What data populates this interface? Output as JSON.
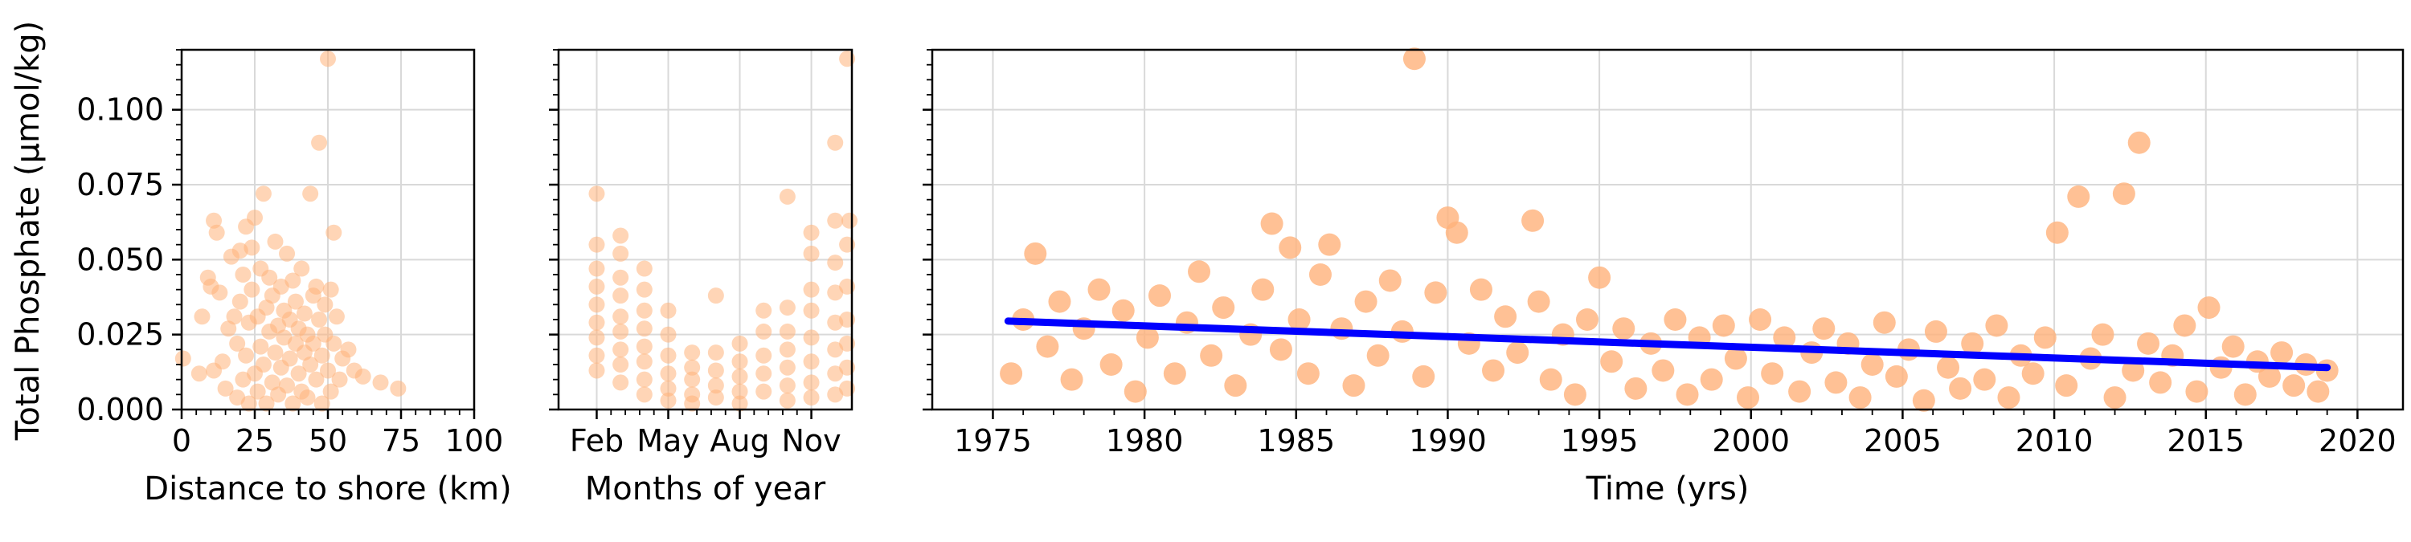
{
  "figure": {
    "ylabel": "Total Phosphate (µmol/kg)",
    "marker_color": "#ffb27a",
    "trend_color": "#0000ff"
  },
  "chart_data": [
    {
      "type": "scatter",
      "xlabel": "Distance to shore (km)",
      "ylabel": "Total Phosphate (µmol/kg)",
      "xlim": [
        0,
        100
      ],
      "ylim": [
        0,
        0.12
      ],
      "xticks": [
        0,
        25,
        50,
        75,
        100
      ],
      "xtick_labels": [
        "0",
        "25",
        "50",
        "75",
        "100"
      ],
      "yticks": [
        0,
        0.025,
        0.05,
        0.075,
        0.1
      ],
      "ytick_labels": [
        "0.000",
        "0.025",
        "0.050",
        "0.075",
        "0.100"
      ],
      "grid": true,
      "points": [
        [
          0.5,
          0.017
        ],
        [
          6,
          0.012
        ],
        [
          7,
          0.031
        ],
        [
          9,
          0.044
        ],
        [
          10,
          0.041
        ],
        [
          11,
          0.063
        ],
        [
          11,
          0.013
        ],
        [
          12,
          0.059
        ],
        [
          13,
          0.039
        ],
        [
          14,
          0.016
        ],
        [
          15,
          0.007
        ],
        [
          16,
          0.027
        ],
        [
          17,
          0.051
        ],
        [
          18,
          0.031
        ],
        [
          19,
          0.004
        ],
        [
          19,
          0.022
        ],
        [
          20,
          0.036
        ],
        [
          20,
          0.053
        ],
        [
          21,
          0.01
        ],
        [
          21,
          0.045
        ],
        [
          22,
          0.061
        ],
        [
          22,
          0.018
        ],
        [
          23,
          0.029
        ],
        [
          23,
          0.002
        ],
        [
          24,
          0.04
        ],
        [
          24,
          0.054
        ],
        [
          25,
          0.012
        ],
        [
          25,
          0.064
        ],
        [
          26,
          0.031
        ],
        [
          26,
          0.006
        ],
        [
          27,
          0.021
        ],
        [
          27,
          0.047
        ],
        [
          28,
          0.072
        ],
        [
          28,
          0.015
        ],
        [
          29,
          0.034
        ],
        [
          29,
          0.002
        ],
        [
          30,
          0.026
        ],
        [
          30,
          0.044
        ],
        [
          31,
          0.009
        ],
        [
          31,
          0.038
        ],
        [
          32,
          0.019
        ],
        [
          32,
          0.056
        ],
        [
          33,
          0.028
        ],
        [
          33,
          0.005
        ],
        [
          34,
          0.041
        ],
        [
          34,
          0.014
        ],
        [
          35,
          0.024
        ],
        [
          35,
          0.033
        ],
        [
          36,
          0.052
        ],
        [
          36,
          0.008
        ],
        [
          37,
          0.03
        ],
        [
          37,
          0.017
        ],
        [
          38,
          0.043
        ],
        [
          38,
          0.002
        ],
        [
          39,
          0.022
        ],
        [
          39,
          0.036
        ],
        [
          40,
          0.012
        ],
        [
          40,
          0.027
        ],
        [
          41,
          0.047
        ],
        [
          41,
          0.006
        ],
        [
          42,
          0.032
        ],
        [
          42,
          0.019
        ],
        [
          43,
          0.025
        ],
        [
          43,
          0.004
        ],
        [
          44,
          0.072
        ],
        [
          44,
          0.015
        ],
        [
          45,
          0.038
        ],
        [
          45,
          0.022
        ],
        [
          46,
          0.041
        ],
        [
          46,
          0.01
        ],
        [
          47,
          0.089
        ],
        [
          47,
          0.03
        ],
        [
          48,
          0.018
        ],
        [
          48,
          0.002
        ],
        [
          49,
          0.035
        ],
        [
          49,
          0.025
        ],
        [
          50,
          0.117
        ],
        [
          50,
          0.013
        ],
        [
          51,
          0.04
        ],
        [
          51,
          0.006
        ],
        [
          52,
          0.059
        ],
        [
          52,
          0.022
        ],
        [
          53,
          0.031
        ],
        [
          54,
          0.01
        ],
        [
          55,
          0.017
        ],
        [
          57,
          0.02
        ],
        [
          59,
          0.013
        ],
        [
          62,
          0.011
        ],
        [
          68,
          0.009
        ],
        [
          74,
          0.007
        ]
      ]
    },
    {
      "type": "scatter",
      "xlabel": "Months of year",
      "ylabel": "",
      "xlim": [
        0.4,
        12.7
      ],
      "ylim": [
        0,
        0.12
      ],
      "xticks": [
        2,
        5,
        8,
        11
      ],
      "xtick_labels": [
        "Feb",
        "May",
        "Aug",
        "Nov"
      ],
      "yticks": [
        0,
        0.025,
        0.05,
        0.075,
        0.1
      ],
      "ytick_labels": [],
      "grid": true,
      "points": [
        [
          2,
          0.072
        ],
        [
          2,
          0.055
        ],
        [
          2,
          0.047
        ],
        [
          2,
          0.041
        ],
        [
          2,
          0.035
        ],
        [
          2,
          0.029
        ],
        [
          2,
          0.024
        ],
        [
          2,
          0.018
        ],
        [
          2,
          0.013
        ],
        [
          3,
          0.058
        ],
        [
          3,
          0.052
        ],
        [
          3,
          0.044
        ],
        [
          3,
          0.038
        ],
        [
          3,
          0.031
        ],
        [
          3,
          0.026
        ],
        [
          3,
          0.02
        ],
        [
          3,
          0.015
        ],
        [
          3,
          0.009
        ],
        [
          4,
          0.047
        ],
        [
          4,
          0.04
        ],
        [
          4,
          0.033
        ],
        [
          4,
          0.027
        ],
        [
          4,
          0.021
        ],
        [
          4,
          0.016
        ],
        [
          4,
          0.01
        ],
        [
          4,
          0.005
        ],
        [
          5,
          0.033
        ],
        [
          5,
          0.025
        ],
        [
          5,
          0.018
        ],
        [
          5,
          0.012
        ],
        [
          5,
          0.007
        ],
        [
          5,
          0.003
        ],
        [
          6,
          0.019
        ],
        [
          6,
          0.014
        ],
        [
          6,
          0.01
        ],
        [
          6,
          0.005
        ],
        [
          6,
          0.002
        ],
        [
          7,
          0.038
        ],
        [
          7,
          0.019
        ],
        [
          7,
          0.013
        ],
        [
          7,
          0.008
        ],
        [
          7,
          0.004
        ],
        [
          8,
          0.022
        ],
        [
          8,
          0.016
        ],
        [
          8,
          0.011
        ],
        [
          8,
          0.006
        ],
        [
          8,
          0.002
        ],
        [
          9,
          0.033
        ],
        [
          9,
          0.026
        ],
        [
          9,
          0.018
        ],
        [
          9,
          0.012
        ],
        [
          9,
          0.006
        ],
        [
          10,
          0.071
        ],
        [
          10,
          0.034
        ],
        [
          10,
          0.026
        ],
        [
          10,
          0.02
        ],
        [
          10,
          0.014
        ],
        [
          10,
          0.008
        ],
        [
          10,
          0.003
        ],
        [
          11,
          0.059
        ],
        [
          11,
          0.052
        ],
        [
          11,
          0.04
        ],
        [
          11,
          0.033
        ],
        [
          11,
          0.024
        ],
        [
          11,
          0.016
        ],
        [
          11,
          0.009
        ],
        [
          11,
          0.004
        ],
        [
          12,
          0.089
        ],
        [
          12,
          0.063
        ],
        [
          12,
          0.049
        ],
        [
          12,
          0.039
        ],
        [
          12,
          0.029
        ],
        [
          12,
          0.02
        ],
        [
          12,
          0.012
        ],
        [
          12,
          0.005
        ],
        [
          12.5,
          0.117
        ],
        [
          12.5,
          0.055
        ],
        [
          12.5,
          0.041
        ],
        [
          12.5,
          0.03
        ],
        [
          12.5,
          0.022
        ],
        [
          12.5,
          0.014
        ],
        [
          12.5,
          0.007
        ],
        [
          12.6,
          0.063
        ]
      ]
    },
    {
      "type": "scatter",
      "xlabel": "Time (yrs)",
      "ylabel": "",
      "xlim": [
        1973,
        2021.5
      ],
      "ylim": [
        0,
        0.12
      ],
      "xticks": [
        1975,
        1980,
        1985,
        1990,
        1995,
        2000,
        2005,
        2010,
        2015,
        2020
      ],
      "xtick_labels": [
        "1975",
        "1980",
        "1985",
        "1990",
        "1995",
        "2000",
        "2005",
        "2010",
        "2015",
        "2020"
      ],
      "yticks": [
        0,
        0.025,
        0.05,
        0.075,
        0.1
      ],
      "ytick_labels": [],
      "grid": true,
      "trend": {
        "x": [
          1975.5,
          2019
        ],
        "y": [
          0.0295,
          0.014
        ]
      },
      "points": [
        [
          1975.6,
          0.012
        ],
        [
          1976.0,
          0.03
        ],
        [
          1976.4,
          0.052
        ],
        [
          1976.8,
          0.021
        ],
        [
          1977.2,
          0.036
        ],
        [
          1977.6,
          0.01
        ],
        [
          1978.0,
          0.027
        ],
        [
          1978.5,
          0.04
        ],
        [
          1978.9,
          0.015
        ],
        [
          1979.3,
          0.033
        ],
        [
          1979.7,
          0.006
        ],
        [
          1980.1,
          0.024
        ],
        [
          1980.5,
          0.038
        ],
        [
          1981.0,
          0.012
        ],
        [
          1981.4,
          0.029
        ],
        [
          1981.8,
          0.046
        ],
        [
          1982.2,
          0.018
        ],
        [
          1982.6,
          0.034
        ],
        [
          1983.0,
          0.008
        ],
        [
          1983.5,
          0.025
        ],
        [
          1983.9,
          0.04
        ],
        [
          1984.2,
          0.062
        ],
        [
          1984.5,
          0.02
        ],
        [
          1984.8,
          0.054
        ],
        [
          1985.1,
          0.03
        ],
        [
          1985.4,
          0.012
        ],
        [
          1985.8,
          0.045
        ],
        [
          1986.1,
          0.055
        ],
        [
          1986.5,
          0.027
        ],
        [
          1986.9,
          0.008
        ],
        [
          1987.3,
          0.036
        ],
        [
          1987.7,
          0.018
        ],
        [
          1988.1,
          0.043
        ],
        [
          1988.5,
          0.026
        ],
        [
          1988.9,
          0.117
        ],
        [
          1989.2,
          0.011
        ],
        [
          1989.6,
          0.039
        ],
        [
          1990.0,
          0.064
        ],
        [
          1990.3,
          0.059
        ],
        [
          1990.7,
          0.022
        ],
        [
          1991.1,
          0.04
        ],
        [
          1991.5,
          0.013
        ],
        [
          1991.9,
          0.031
        ],
        [
          1992.3,
          0.019
        ],
        [
          1992.8,
          0.063
        ],
        [
          1993.0,
          0.036
        ],
        [
          1993.4,
          0.01
        ],
        [
          1993.8,
          0.025
        ],
        [
          1994.2,
          0.005
        ],
        [
          1994.6,
          0.03
        ],
        [
          1995.0,
          0.044
        ],
        [
          1995.4,
          0.016
        ],
        [
          1995.8,
          0.027
        ],
        [
          1996.2,
          0.007
        ],
        [
          1996.7,
          0.022
        ],
        [
          1997.1,
          0.013
        ],
        [
          1997.5,
          0.03
        ],
        [
          1997.9,
          0.005
        ],
        [
          1998.3,
          0.024
        ],
        [
          1998.7,
          0.01
        ],
        [
          1999.1,
          0.028
        ],
        [
          1999.5,
          0.017
        ],
        [
          1999.9,
          0.004
        ],
        [
          2000.3,
          0.03
        ],
        [
          2000.7,
          0.012
        ],
        [
          2001.1,
          0.024
        ],
        [
          2001.6,
          0.006
        ],
        [
          2002.0,
          0.019
        ],
        [
          2002.4,
          0.027
        ],
        [
          2002.8,
          0.009
        ],
        [
          2003.2,
          0.022
        ],
        [
          2003.6,
          0.004
        ],
        [
          2004.0,
          0.015
        ],
        [
          2004.4,
          0.029
        ],
        [
          2004.8,
          0.011
        ],
        [
          2005.2,
          0.02
        ],
        [
          2005.7,
          0.003
        ],
        [
          2006.1,
          0.026
        ],
        [
          2006.5,
          0.014
        ],
        [
          2006.9,
          0.007
        ],
        [
          2007.3,
          0.022
        ],
        [
          2007.7,
          0.01
        ],
        [
          2008.1,
          0.028
        ],
        [
          2008.5,
          0.004
        ],
        [
          2008.9,
          0.018
        ],
        [
          2009.3,
          0.012
        ],
        [
          2009.7,
          0.024
        ],
        [
          2010.1,
          0.059
        ],
        [
          2010.4,
          0.008
        ],
        [
          2010.8,
          0.071
        ],
        [
          2011.2,
          0.017
        ],
        [
          2011.6,
          0.025
        ],
        [
          2012.0,
          0.004
        ],
        [
          2012.3,
          0.072
        ],
        [
          2012.6,
          0.013
        ],
        [
          2012.8,
          0.089
        ],
        [
          2013.1,
          0.022
        ],
        [
          2013.5,
          0.009
        ],
        [
          2013.9,
          0.018
        ],
        [
          2014.3,
          0.028
        ],
        [
          2014.7,
          0.006
        ],
        [
          2015.1,
          0.034
        ],
        [
          2015.5,
          0.014
        ],
        [
          2015.9,
          0.021
        ],
        [
          2016.3,
          0.005
        ],
        [
          2016.7,
          0.016
        ],
        [
          2017.1,
          0.011
        ],
        [
          2017.5,
          0.019
        ],
        [
          2017.9,
          0.008
        ],
        [
          2018.3,
          0.015
        ],
        [
          2018.7,
          0.006
        ],
        [
          2019.0,
          0.013
        ]
      ]
    }
  ]
}
